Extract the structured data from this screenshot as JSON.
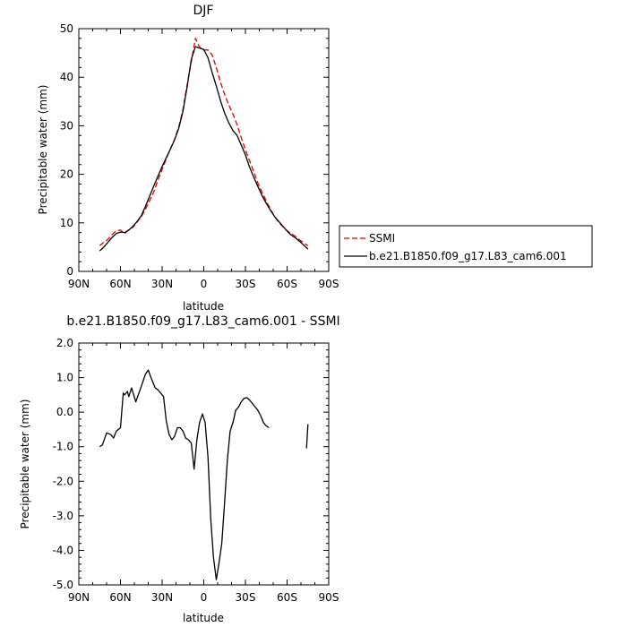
{
  "chart_data": [
    {
      "type": "line",
      "title": "DJF",
      "xlabel": "latitude",
      "ylabel": "Precipitable water (mm)",
      "xlim": [
        90,
        -90
      ],
      "ylim": [
        0,
        50
      ],
      "x_ticks": [
        90,
        60,
        30,
        0,
        -30,
        -60,
        -90
      ],
      "x_tick_labels": [
        "90N",
        "60N",
        "30N",
        "0",
        "30S",
        "60S",
        "90S"
      ],
      "y_ticks": [
        0,
        10,
        20,
        30,
        40,
        50
      ],
      "y_tick_labels": [
        "0",
        "10",
        "20",
        "30",
        "40",
        "50"
      ],
      "legend": {
        "placement": "right",
        "entries": [
          "SSMI",
          "b.e21.B1850.f09_g17.L83_cam6.001"
        ]
      },
      "series": [
        {
          "name": "SSMI",
          "color": "#e00000",
          "dash": "dashed",
          "x": [
            75,
            72,
            69,
            66,
            63,
            60,
            57,
            54,
            51,
            48,
            45,
            42,
            39,
            36,
            33,
            30,
            27,
            24,
            21,
            18,
            15,
            12,
            9,
            6,
            3,
            0,
            -3,
            -6,
            -9,
            -12,
            -15,
            -18,
            -21,
            -24,
            -27,
            -30,
            -33,
            -36,
            -39,
            -42,
            -45,
            -48,
            -51,
            -54,
            -57,
            -60,
            -63,
            -66,
            -69,
            -72,
            -75
          ],
          "y": [
            5.3,
            6.0,
            6.6,
            7.6,
            8.4,
            8.5,
            7.8,
            8.6,
            9.1,
            10.2,
            11.3,
            12.8,
            14.6,
            16.4,
            18.8,
            21.0,
            23.2,
            25.3,
            27.2,
            29.8,
            33.4,
            38.4,
            43.2,
            48.0,
            46.2,
            45.6,
            45.6,
            44.6,
            42.0,
            39.0,
            36.4,
            34.3,
            32.4,
            30.2,
            27.5,
            25.0,
            22.8,
            20.5,
            18.2,
            16.3,
            14.5,
            12.8,
            11.3,
            10.1,
            9.2,
            8.4,
            7.8,
            7.2,
            6.5,
            5.9,
            5.3
          ]
        },
        {
          "name": "b.e21.B1850.f09_g17.L83_cam6.001",
          "color": "#000000",
          "dash": "solid",
          "x": [
            75,
            72,
            69,
            66,
            63,
            60,
            57,
            54,
            51,
            48,
            45,
            42,
            39,
            36,
            33,
            30,
            27,
            24,
            21,
            18,
            15,
            12,
            9,
            6,
            3,
            0,
            -3,
            -6,
            -9,
            -12,
            -15,
            -18,
            -21,
            -24,
            -27,
            -30,
            -33,
            -36,
            -39,
            -42,
            -45,
            -48,
            -51,
            -54,
            -57,
            -60,
            -63,
            -66,
            -69,
            -72,
            -75
          ],
          "y": [
            4.2,
            5.0,
            6.0,
            7.0,
            7.8,
            8.1,
            8.0,
            8.5,
            9.3,
            10.3,
            11.5,
            13.4,
            15.5,
            17.6,
            19.6,
            21.6,
            23.4,
            25.2,
            27.1,
            29.5,
            33.0,
            38.0,
            43.7,
            46.3,
            46.0,
            45.7,
            44.0,
            41.0,
            38.2,
            35.2,
            32.6,
            30.6,
            29.0,
            28.0,
            26.0,
            24.0,
            21.5,
            19.4,
            17.5,
            15.6,
            14.0,
            12.6,
            11.3,
            10.3,
            9.3,
            8.3,
            7.5,
            6.9,
            6.2,
            5.4,
            4.6
          ]
        }
      ]
    },
    {
      "type": "line",
      "title": "b.e21.B1850.f09_g17.L83_cam6.001 - SSMI",
      "xlabel": "latitude",
      "ylabel": "Precipitable water (mm)",
      "xlim": [
        90,
        -90
      ],
      "ylim": [
        -5.0,
        2.0
      ],
      "x_ticks": [
        90,
        60,
        30,
        0,
        -30,
        -60,
        -90
      ],
      "x_tick_labels": [
        "90N",
        "60N",
        "30N",
        "0",
        "30S",
        "60S",
        "90S"
      ],
      "y_ticks": [
        -5,
        -4,
        -3,
        -2,
        -1,
        0,
        1,
        2
      ],
      "y_tick_labels": [
        "-5.0",
        "-4.0",
        "-3.0",
        "-2.0",
        "-1.0",
        "0.0",
        "1.0",
        "2.0"
      ],
      "series": [
        {
          "color": "#000000",
          "dash": "solid",
          "segments": [
            {
              "x": [
                75,
                73,
                70,
                67,
                65,
                63,
                60,
                58,
                57,
                55,
                54,
                52,
                49,
                45,
                42,
                40,
                38,
                35,
                33,
                31,
                29,
                27,
                25,
                23,
                21,
                19,
                17,
                15,
                13,
                11,
                9,
                7,
                5,
                3,
                1,
                -1,
                -3,
                -5,
                -7,
                -9,
                -11,
                -13,
                -15,
                -17,
                -19,
                -21,
                -23,
                -25,
                -27,
                -29,
                -31,
                -33,
                -35,
                -37,
                -39,
                -41,
                -43,
                -45,
                -47,
                -49,
                -51,
                -53,
                -55,
                -57,
                -59,
                -61,
                -63,
                -65
              ],
              "y": [
                -1.0,
                -0.95,
                -0.6,
                -0.65,
                -0.75,
                -0.55,
                -0.45,
                0.55,
                0.5,
                0.6,
                0.45,
                0.7,
                0.3,
                0.75,
                1.1,
                1.22,
                1.0,
                0.7,
                0.65,
                0.55,
                0.45,
                -0.25,
                -0.65,
                -0.8,
                -0.7,
                -0.45,
                -0.45,
                -0.55,
                -0.75,
                -0.8,
                -0.9,
                -1.65,
                -0.8,
                -0.3,
                -0.05,
                -0.3,
                -1.3,
                -3.1,
                -4.2,
                -4.85,
                -4.35,
                -3.8,
                -2.6,
                -1.4,
                -0.55,
                -0.3,
                0.05,
                0.15,
                0.3,
                0.4,
                0.42,
                0.35,
                0.25,
                0.15,
                0.05,
                -0.1,
                -0.3,
                -0.4,
                -0.45,
                null,
                null,
                null,
                null,
                null,
                null,
                null,
                null,
                null
              ],
              "note_hidden": true
            }
          ],
          "x": [
            75,
            73,
            70,
            67,
            65,
            63,
            60,
            58,
            57,
            55,
            54,
            52,
            49,
            45,
            42,
            40,
            38,
            35,
            33,
            31,
            29,
            27,
            25,
            23,
            21,
            19,
            17,
            15,
            13,
            11,
            9,
            7,
            5,
            3,
            1,
            -1,
            -3,
            -5,
            -7,
            -9,
            -11,
            -13,
            -15,
            -17,
            -19,
            -21,
            -23,
            -25,
            -27,
            -29,
            -31,
            -33,
            -35,
            -37,
            -39,
            -41,
            -43,
            -45,
            -47,
            -49,
            -51,
            -53,
            -55,
            -57,
            -59,
            -61,
            -63,
            -65,
            -68,
            -70,
            -74,
            -75
          ],
          "y": [
            -1.0,
            -0.95,
            -0.6,
            -0.65,
            -0.75,
            -0.55,
            -0.45,
            0.55,
            0.5,
            0.6,
            0.45,
            0.7,
            0.3,
            0.75,
            1.1,
            1.22,
            1.0,
            0.7,
            0.65,
            0.55,
            0.45,
            -0.25,
            -0.65,
            -0.8,
            -0.7,
            -0.45,
            -0.45,
            -0.55,
            -0.75,
            -0.8,
            -0.9,
            -1.65,
            -0.8,
            -0.3,
            -0.05,
            -0.3,
            -1.3,
            -3.1,
            -4.2,
            -4.85,
            -4.35,
            -3.8,
            -2.6,
            -1.4,
            -0.55,
            -0.3,
            0.05,
            0.15,
            0.3,
            0.4,
            0.42,
            0.35,
            0.25,
            0.15,
            0.05,
            -0.1,
            -0.3,
            -0.4,
            -0.45,
            null,
            null,
            null,
            null,
            null,
            null,
            null,
            null,
            null,
            null,
            null,
            -1.05,
            -0.35
          ]
        }
      ]
    }
  ]
}
